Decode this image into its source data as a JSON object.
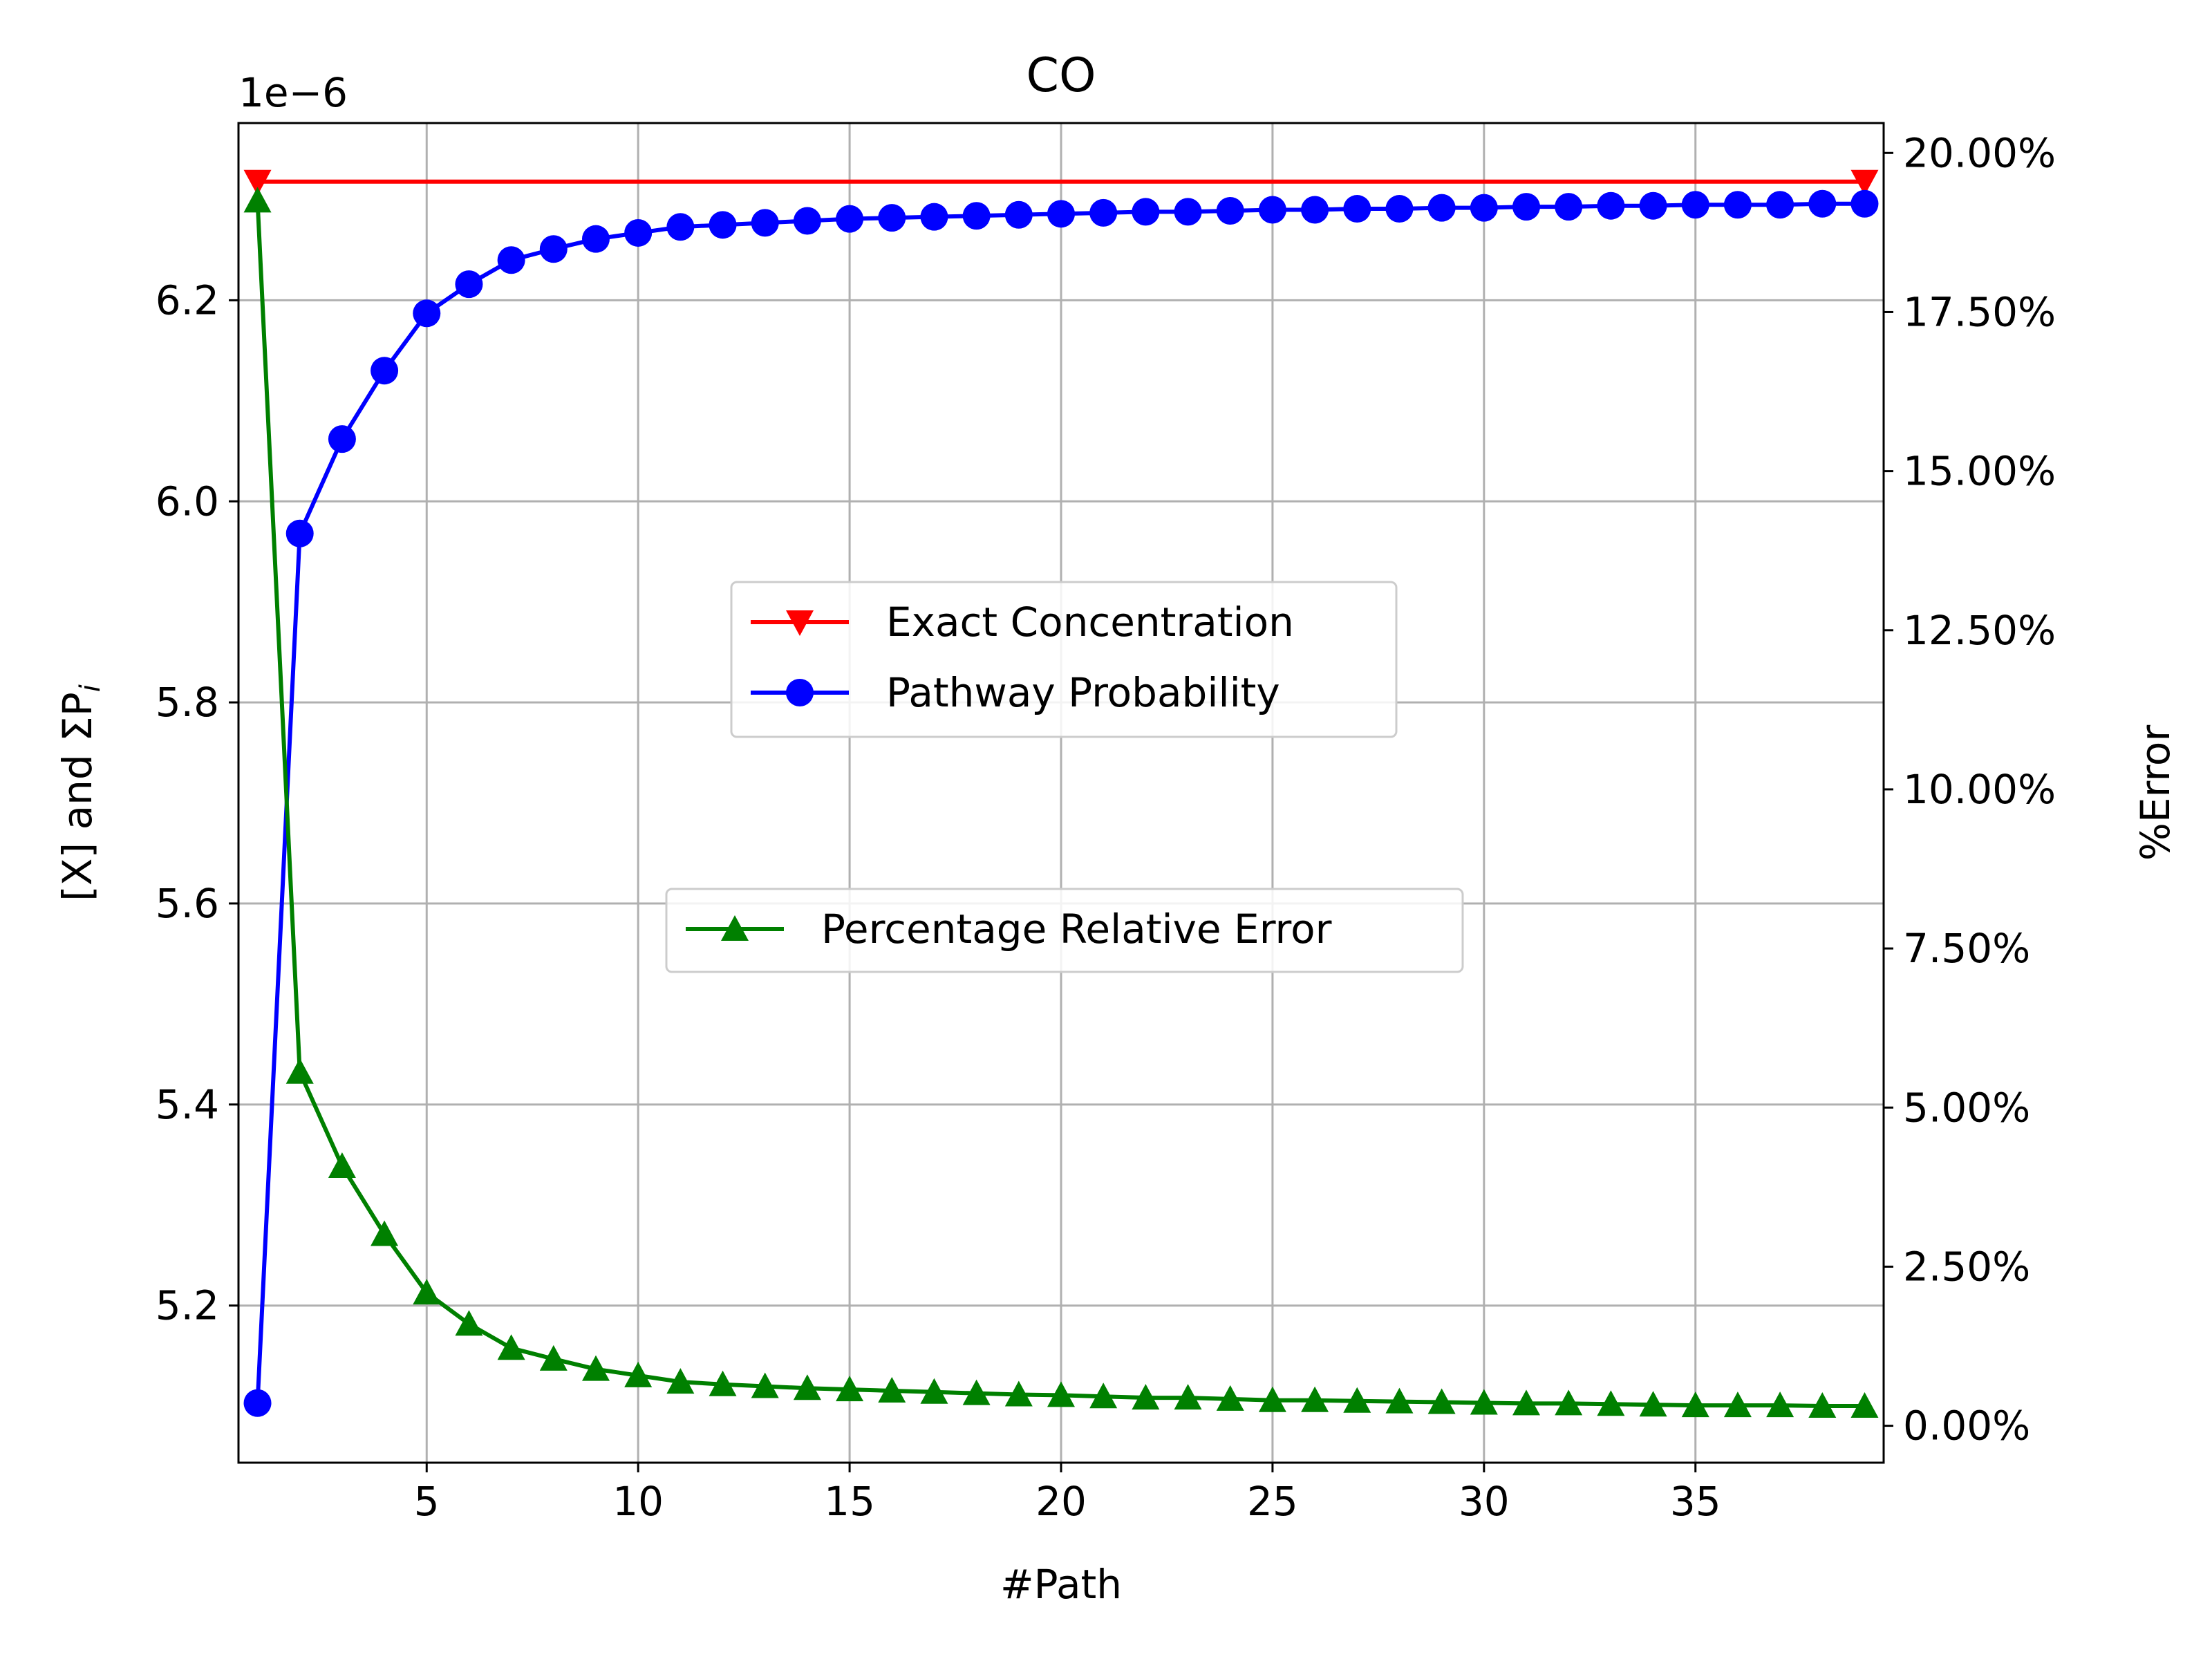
{
  "chart_data": {
    "type": "line",
    "title": "CO",
    "xlabel": "#Path",
    "ylabel_left": "[X] and ΣP",
    "ylabel_left_subscript": "i",
    "ylabel_right": "%Error",
    "left_axis_offset_label": "1e−6",
    "xlim": [
      0.55,
      39.45
    ],
    "ylim_left": [
      5.0437,
      6.3763
    ],
    "ylim_right": [
      -0.0058,
      0.2047
    ],
    "x_ticks": [
      5,
      10,
      15,
      20,
      25,
      30,
      35
    ],
    "x_tick_labels": [
      "5",
      "10",
      "15",
      "20",
      "25",
      "30",
      "35"
    ],
    "y_left_ticks": [
      5.2,
      5.4,
      5.6,
      5.8,
      6.0,
      6.2
    ],
    "y_left_tick_labels": [
      "5.2",
      "5.4",
      "5.6",
      "5.8",
      "6.0",
      "6.2"
    ],
    "y_right_ticks": [
      0.0,
      0.025,
      0.05,
      0.075,
      0.1,
      0.125,
      0.15,
      0.175,
      0.2
    ],
    "y_right_tick_labels": [
      "0.00%",
      "2.50%",
      "5.00%",
      "7.50%",
      "10.00%",
      "12.50%",
      "15.00%",
      "17.50%",
      "20.00%"
    ],
    "grid": true,
    "legend_left": {
      "placement": "center",
      "entries": [
        "Exact Concentration",
        "Pathway Probability"
      ]
    },
    "legend_right": {
      "placement": "center-low",
      "entries": [
        "Percentage Relative Error"
      ]
    },
    "series": [
      {
        "name": "Exact Concentration",
        "axis": "left",
        "color": "#ff0000",
        "marker": "triangle-down",
        "x": [
          1,
          39
        ],
        "y": [
          6.318,
          6.318
        ]
      },
      {
        "name": "Pathway Probability",
        "axis": "left",
        "color": "#0000ff",
        "marker": "circle",
        "x": [
          1,
          2,
          3,
          4,
          5,
          6,
          7,
          8,
          9,
          10,
          11,
          12,
          13,
          14,
          15,
          16,
          17,
          18,
          19,
          20,
          21,
          22,
          23,
          24,
          25,
          26,
          27,
          28,
          29,
          30,
          31,
          32,
          33,
          34,
          35,
          36,
          37,
          38,
          39
        ],
        "y": [
          5.103,
          5.968,
          6.062,
          6.13,
          6.187,
          6.216,
          6.24,
          6.251,
          6.261,
          6.267,
          6.273,
          6.275,
          6.277,
          6.279,
          6.281,
          6.282,
          6.283,
          6.284,
          6.285,
          6.286,
          6.287,
          6.288,
          6.288,
          6.289,
          6.29,
          6.29,
          6.291,
          6.291,
          6.292,
          6.292,
          6.293,
          6.293,
          6.294,
          6.294,
          6.295,
          6.295,
          6.295,
          6.296,
          6.296
        ]
      },
      {
        "name": "Percentage Relative Error",
        "axis": "right",
        "color": "#008000",
        "marker": "triangle-up",
        "x": [
          1,
          2,
          3,
          4,
          5,
          6,
          7,
          8,
          9,
          10,
          11,
          12,
          13,
          14,
          15,
          16,
          17,
          18,
          19,
          20,
          21,
          22,
          23,
          24,
          25,
          26,
          27,
          28,
          29,
          30,
          31,
          32,
          33,
          34,
          35,
          36,
          37,
          38,
          39
        ],
        "y": [
          0.1925,
          0.0556,
          0.0408,
          0.0301,
          0.0209,
          0.016,
          0.0122,
          0.0105,
          0.0089,
          0.0079,
          0.0069,
          0.0065,
          0.0062,
          0.0059,
          0.0057,
          0.0055,
          0.0053,
          0.0051,
          0.0049,
          0.0048,
          0.0046,
          0.0044,
          0.0044,
          0.0042,
          0.004,
          0.004,
          0.0039,
          0.0038,
          0.0037,
          0.0036,
          0.0035,
          0.0035,
          0.0034,
          0.0033,
          0.0032,
          0.0032,
          0.0032,
          0.0031,
          0.0031
        ]
      }
    ]
  }
}
